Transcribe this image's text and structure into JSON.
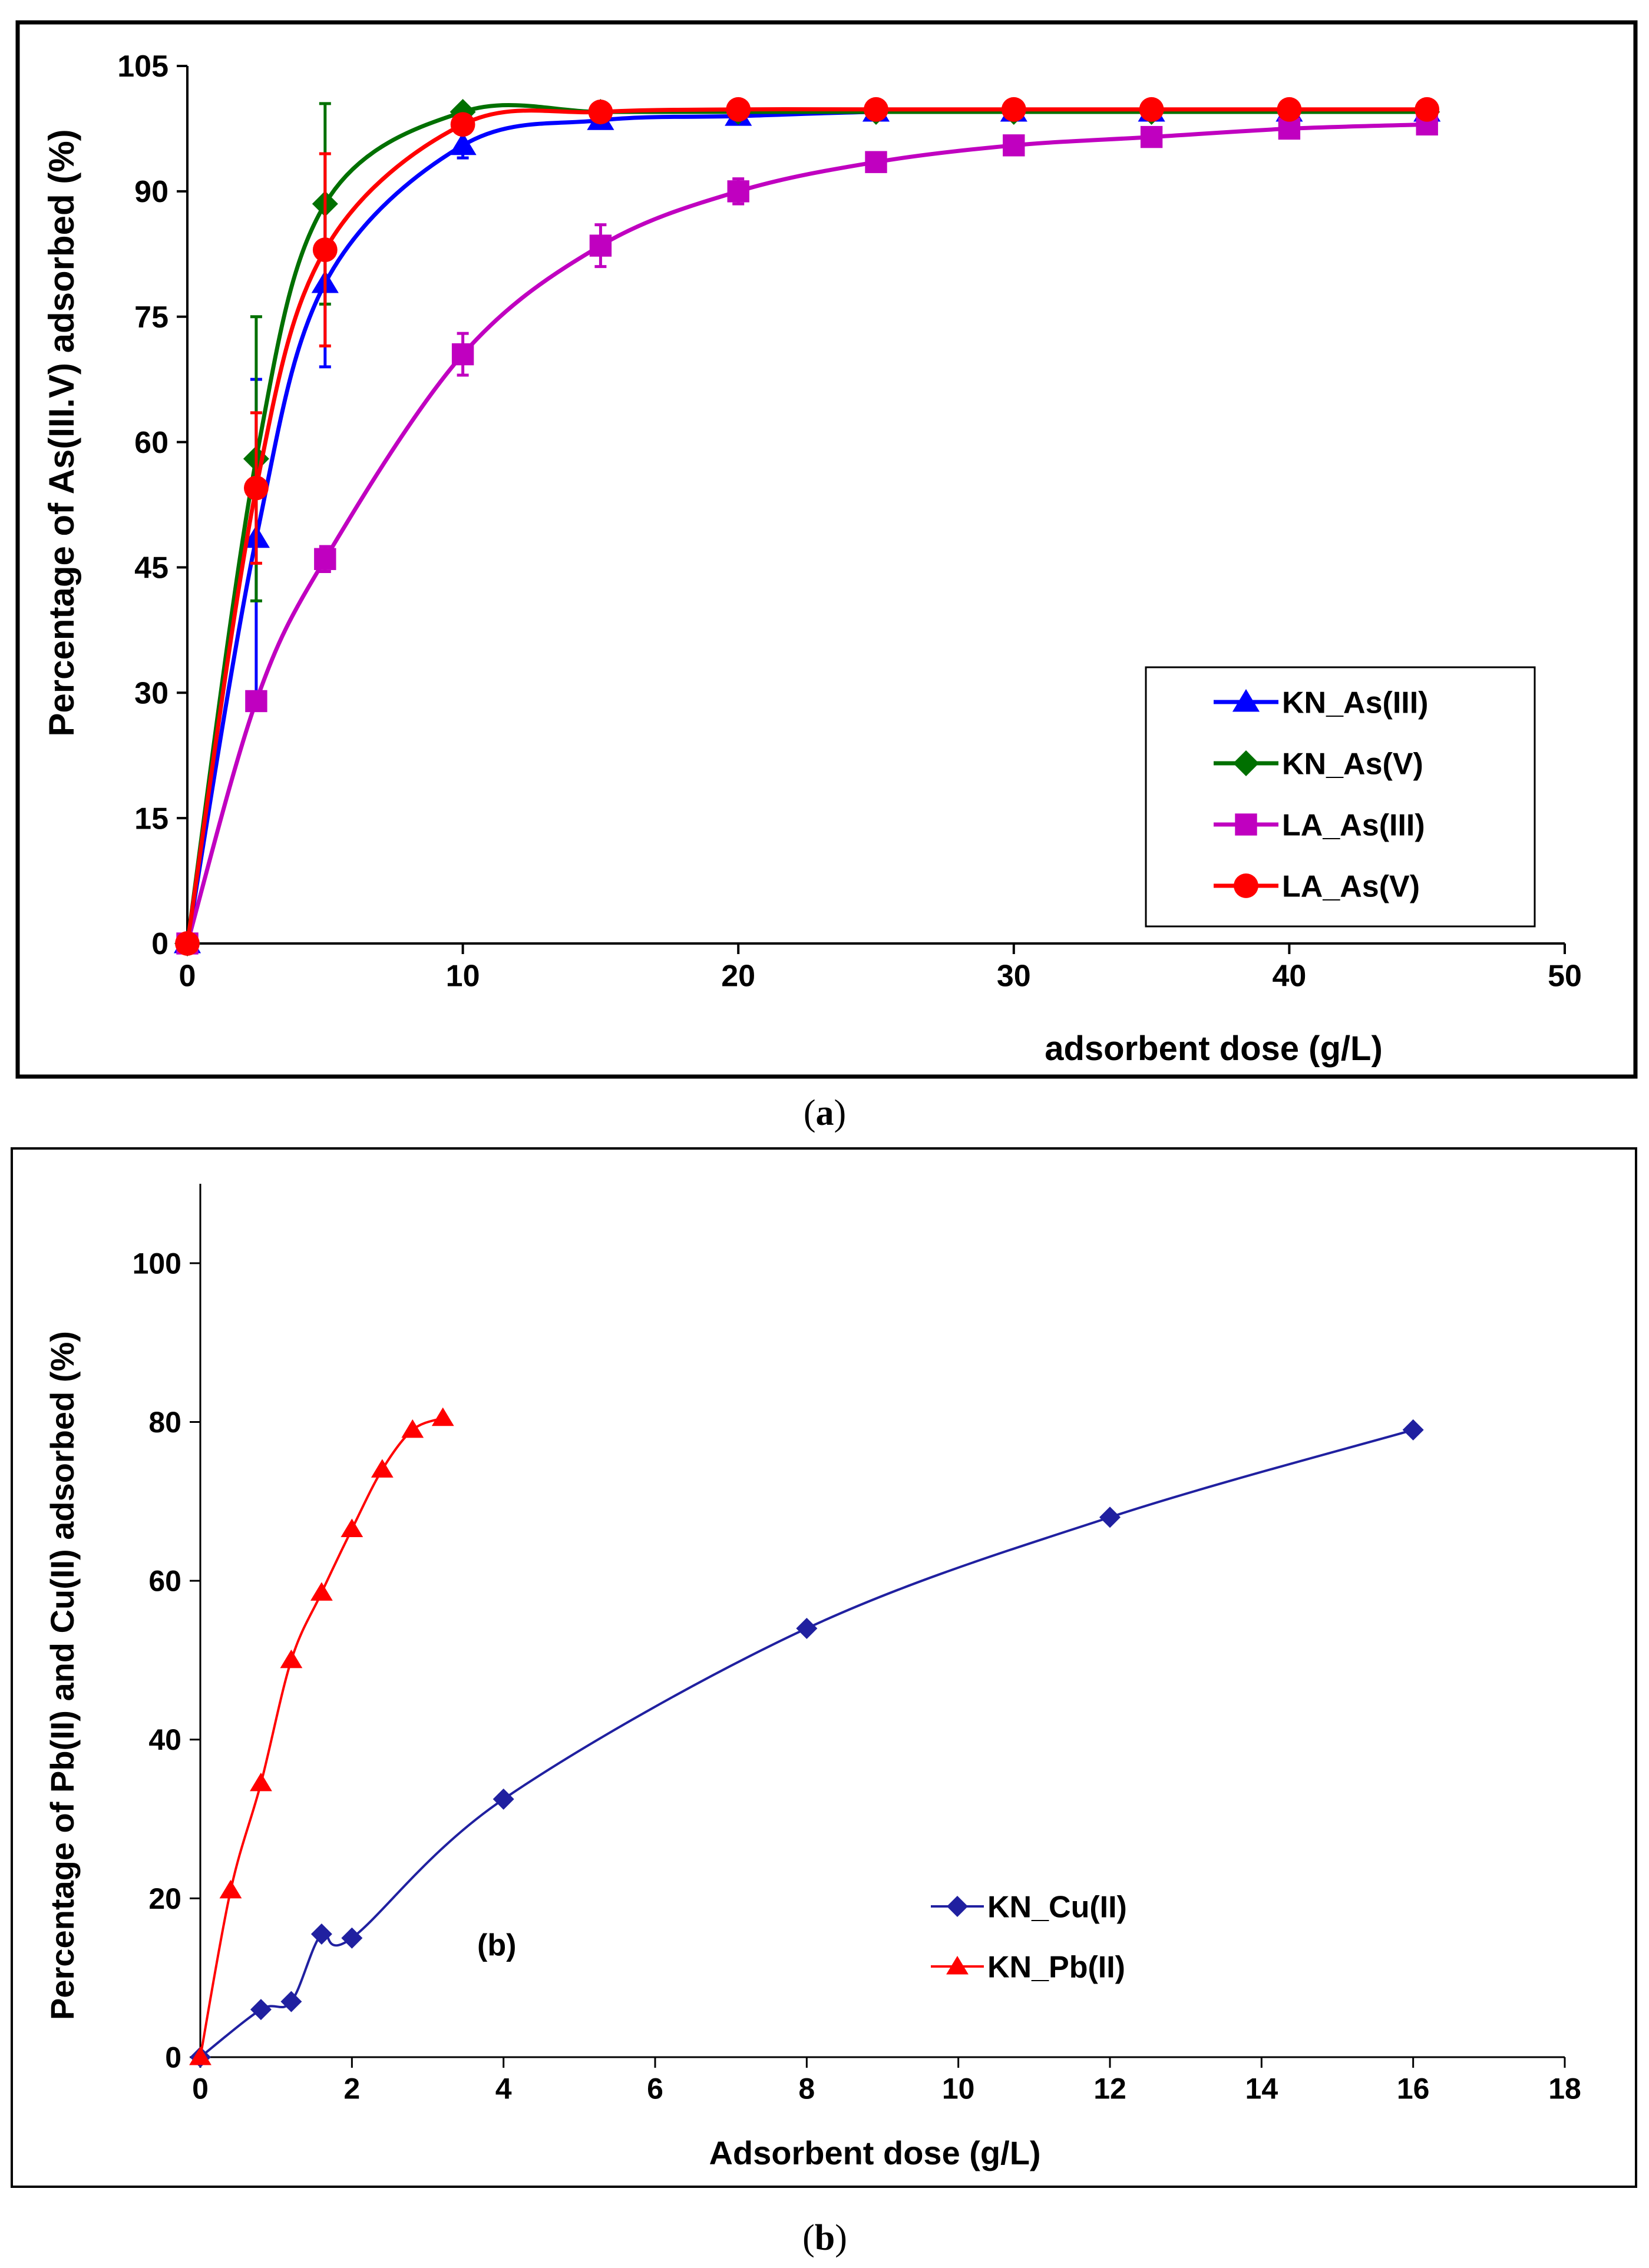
{
  "chart_data": [
    {
      "type": "line",
      "panel": "a",
      "caption": "a",
      "xlabel": "adsorbent dose (g/L)",
      "ylabel": "Percentage of As(III.V) adsorbed (%)",
      "xlim": [
        0,
        50
      ],
      "ylim": [
        0,
        105
      ],
      "xticks": [
        0,
        10,
        20,
        30,
        40,
        50
      ],
      "yticks": [
        0,
        15,
        30,
        45,
        60,
        75,
        90,
        105
      ],
      "legend_position": "bottom-right",
      "grid": false,
      "series": [
        {
          "name": "KN_As(III)",
          "color": "#0000ff",
          "marker": "triangle",
          "x": [
            0,
            2.5,
            5,
            10,
            15,
            20,
            25,
            30,
            35,
            40,
            45
          ],
          "y": [
            0,
            48.5,
            79,
            95.5,
            98.5,
            99,
            99.5,
            99.5,
            99.5,
            99.5,
            99.5
          ],
          "err": [
            0,
            19,
            10,
            1.5,
            0.5,
            0.5,
            0.3,
            0.3,
            0.3,
            0.3,
            0.3
          ]
        },
        {
          "name": "KN_As(V)",
          "color": "#007000",
          "marker": "diamond",
          "x": [
            0,
            2.5,
            5,
            10,
            15,
            20,
            25,
            30,
            35,
            40,
            45
          ],
          "y": [
            0,
            58,
            88.5,
            99.5,
            99.5,
            99.5,
            99.5,
            99.5,
            99.5,
            99.5,
            99.5
          ],
          "err": [
            0,
            17,
            12,
            0.5,
            0.3,
            0.3,
            0.3,
            0.3,
            0.3,
            0.3,
            0.3
          ]
        },
        {
          "name": "LA_As(III)",
          "color": "#c000c0",
          "marker": "square",
          "x": [
            0,
            2.5,
            5,
            10,
            15,
            20,
            25,
            30,
            35,
            40,
            45
          ],
          "y": [
            0,
            29,
            46,
            70.5,
            83.5,
            90,
            93.5,
            95.5,
            96.5,
            97.5,
            98
          ],
          "err": [
            0,
            1,
            1.5,
            2.5,
            2.5,
            1.5,
            1,
            1,
            1,
            1,
            1
          ]
        },
        {
          "name": "LA_As(V)",
          "color": "#ff0000",
          "marker": "circle",
          "x": [
            0,
            2.5,
            5,
            10,
            15,
            20,
            25,
            30,
            35,
            40,
            45
          ],
          "y": [
            0,
            54.5,
            83,
            98,
            99.5,
            99.8,
            99.8,
            99.8,
            99.8,
            99.8,
            99.8
          ],
          "err": [
            0,
            9,
            11.5,
            1,
            0.3,
            0.3,
            0.3,
            0.3,
            0.3,
            0.3,
            0.3
          ]
        }
      ]
    },
    {
      "type": "line",
      "panel": "b",
      "caption": "b",
      "annotation": "(b)",
      "xlabel": "Adsorbent dose (g/L)",
      "ylabel": "Percentage of Pb(II) and Cu(II) adsorbed (%)",
      "xlim": [
        0,
        18
      ],
      "ylim": [
        0,
        110
      ],
      "xticks": [
        0,
        2,
        4,
        6,
        8,
        10,
        12,
        14,
        16,
        18
      ],
      "yticks": [
        0,
        20,
        40,
        60,
        80,
        100
      ],
      "legend_position": "bottom-right",
      "grid": false,
      "series": [
        {
          "name": "KN_Cu(II)",
          "color": "#2020a0",
          "marker": "diamond",
          "x": [
            0,
            0.8,
            1.2,
            1.6,
            2,
            4,
            8,
            12,
            16
          ],
          "y": [
            0,
            6,
            7,
            15.5,
            15,
            32.5,
            54,
            68,
            79
          ]
        },
        {
          "name": "KN_Pb(II)",
          "color": "#ff0000",
          "marker": "triangle",
          "x": [
            0,
            0.4,
            0.8,
            1.2,
            1.6,
            2,
            2.4,
            2.8,
            3.2
          ],
          "y": [
            0,
            21,
            34.5,
            50,
            58.5,
            66.5,
            74,
            79,
            80.5
          ]
        }
      ]
    }
  ]
}
